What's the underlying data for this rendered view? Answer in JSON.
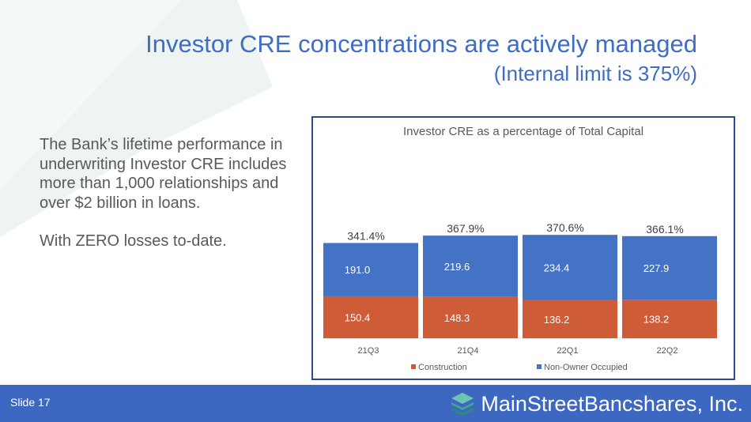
{
  "slide": {
    "title": "Investor CRE concentrations are actively managed",
    "subtitle": "(Internal limit is 375%)",
    "body_paragraphs": [
      "The Bank’s lifetime performance in underwriting Investor CRE includes more than 1,000 relationships and over $2 billion in loans.",
      "With ZERO losses to-date."
    ]
  },
  "footer": {
    "slide_label": "Slide 17",
    "logo_text": "MainStreetBancshares, Inc."
  },
  "colors": {
    "construction": "#cd5c37",
    "non_owner_occupied": "#4472c4",
    "title": "#3f6cc4",
    "footer": "#3d68c2"
  },
  "chart_data": {
    "type": "bar",
    "stacked": true,
    "title": "Investor CRE as a percentage of Total Capital",
    "categories": [
      "21Q3",
      "21Q4",
      "22Q1",
      "22Q2"
    ],
    "series": [
      {
        "name": "Construction",
        "values": [
          150.4,
          148.3,
          136.2,
          138.2
        ]
      },
      {
        "name": "Non-Owner Occupied",
        "values": [
          191.0,
          219.6,
          234.4,
          227.9
        ]
      }
    ],
    "series_labels": [
      [
        "150.4",
        "148.3",
        "136.2",
        "138.2"
      ],
      [
        "191.0",
        "219.6",
        "234.4",
        "227.9"
      ]
    ],
    "totals": [
      "341.4%",
      "367.9%",
      "370.6%",
      "366.1%"
    ],
    "legend": "bottom",
    "grid": false
  }
}
